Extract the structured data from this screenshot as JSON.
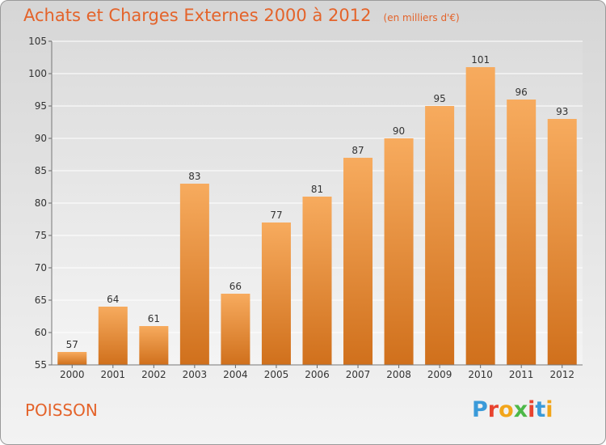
{
  "title": "Achats et Charges Externes 2000 à 2012",
  "unit_note": "(en milliers d'€)",
  "commune": "POISSON",
  "logo": {
    "text": "Proxiti",
    "colors": [
      "#3a9ad9",
      "#e8432f",
      "#f2a51a",
      "#4db848",
      "#e8432f",
      "#3a9ad9",
      "#f2a51a"
    ]
  },
  "colors": {
    "bar_top": "#f7ab5e",
    "bar_bottom": "#d0701c",
    "title": "#e4632a"
  },
  "chart_data": {
    "type": "bar",
    "title": "Achats et Charges Externes 2000 à 2012",
    "xlabel": "",
    "ylabel": "",
    "categories": [
      "2000",
      "2001",
      "2002",
      "2003",
      "2004",
      "2005",
      "2006",
      "2007",
      "2008",
      "2009",
      "2010",
      "2011",
      "2012"
    ],
    "values": [
      57,
      64,
      61,
      83,
      66,
      77,
      81,
      87,
      90,
      95,
      101,
      96,
      93
    ],
    "ylim": [
      55,
      105
    ],
    "yticks": [
      55,
      60,
      65,
      70,
      75,
      80,
      85,
      90,
      95,
      100,
      105
    ],
    "grid": true
  }
}
